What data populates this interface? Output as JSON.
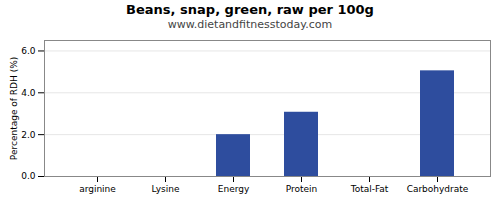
{
  "chart_data": {
    "type": "bar",
    "title": "Beans, snap, green, raw per 100g",
    "subtitle": "www.dietandfitnesstoday.com",
    "categories": [
      "arginine",
      "Lysine",
      "Energy",
      "Protein",
      "Total-Fat",
      "Carbohydrate"
    ],
    "values": [
      0.0,
      0.0,
      2.0,
      3.07,
      0.0,
      5.05
    ],
    "color": "#2e4d9e",
    "ylabel": "Percentage of RDH (%)",
    "ylim": [
      0,
      6.5
    ],
    "yticks": [
      0,
      2,
      4,
      6
    ],
    "grid": true
  }
}
